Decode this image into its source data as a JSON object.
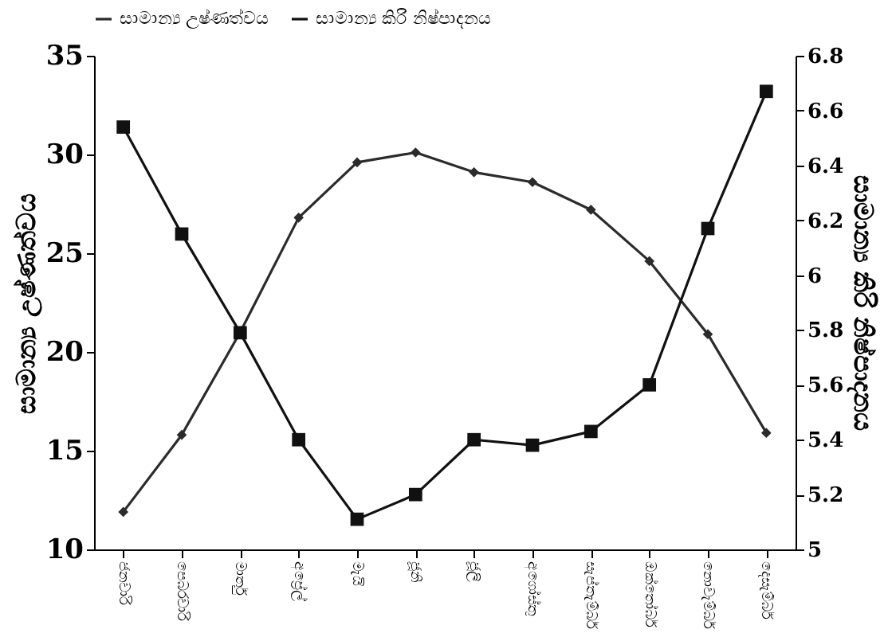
{
  "chart_data": {
    "type": "line",
    "categories": [
      "ජනවාරි",
      "පෙබරවාරි",
      "මාර්තු",
      "අප්‍රේල්",
      "මැයි",
      "ජූනි",
      "ජූලි",
      "අගෝස්තු",
      "සැප්තැම්බර්",
      "ඔක්තෝබර්",
      "නොවැම්බර්",
      "දෙසැම්බර්"
    ],
    "series": [
      {
        "name": "සාමාන්‍ය උෂ්ණත්වය",
        "color": "#2b2b2b",
        "marker": "diamond",
        "values": [
          11.9,
          15.8,
          21.0,
          26.8,
          29.6,
          30.1,
          29.1,
          28.6,
          27.2,
          24.6,
          20.9,
          15.9
        ]
      },
      {
        "name": "සාමාන්‍ය කිරි නිෂ්පාදනය",
        "color": "#111111",
        "marker": "square",
        "axis": "y2",
        "values": [
          6.54,
          6.15,
          5.79,
          5.4,
          5.11,
          5.2,
          5.4,
          5.38,
          5.43,
          5.6,
          6.17,
          6.67
        ]
      }
    ],
    "ylabel": "සාමාන්‍ය උෂ්ණත්වය",
    "y2label": "සාමාන්‍ය කිරි නිෂ්පාදනය",
    "ylim": [
      10,
      35
    ],
    "yticks": [
      10,
      15,
      20,
      25,
      30,
      35
    ],
    "y2lim": [
      5,
      6.8
    ],
    "y2ticks": [
      5,
      5.2,
      5.4,
      5.6,
      5.8,
      6,
      6.2,
      6.4,
      6.6,
      6.8
    ],
    "legend": "top",
    "line_style": "solid"
  }
}
